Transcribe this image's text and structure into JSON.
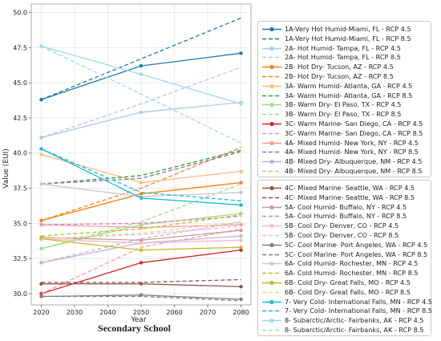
{
  "caption": "Secondary School",
  "chart_data": {
    "type": "line",
    "title": "",
    "xlabel": "Year",
    "ylabel": "Value (EUI)",
    "xlim": [
      2017,
      2083
    ],
    "ylim": [
      29.2,
      50.6
    ],
    "xticks": [
      2020,
      2030,
      2040,
      2050,
      2060,
      2070,
      2080
    ],
    "yticks": [
      30.0,
      32.5,
      35.0,
      37.5,
      40.0,
      42.5,
      45.0,
      47.5,
      50.0
    ],
    "ytick_labels": [
      "30.0",
      "32.5",
      "35.0",
      "37.5",
      "40.0",
      "42.5",
      "45.0",
      "47.5",
      "50.0"
    ],
    "grid": true,
    "legend_placement": "right, outside plot (two boxes)",
    "x": [
      2020,
      2050,
      2080
    ],
    "series": [
      {
        "name": "1A-Very Hot Humid-Miami, FL - RCP 4.5",
        "color": "#1f77b4",
        "dash": "solid",
        "values": [
          43.8,
          46.2,
          47.1
        ]
      },
      {
        "name": "1A-Very Hot Humid-Miami, FL - RCP 8.5",
        "color": "#1f77b4",
        "dash": "dashed",
        "values": [
          43.8,
          46.7,
          49.6
        ]
      },
      {
        "name": "2A- Hot Humid- Tampa, FL - RCP 4.5",
        "color": "#aec7e8",
        "dash": "solid",
        "values": [
          41.1,
          42.9,
          43.6
        ]
      },
      {
        "name": "2A- Hot Humid- Tampa, FL - RCP 8.5",
        "color": "#aec7e8",
        "dash": "dashed",
        "values": [
          41.1,
          43.5,
          46.1
        ]
      },
      {
        "name": "2B- Hot Dry- Tucson, AZ - RCP 4.5",
        "color": "#ff7f0e",
        "dash": "solid",
        "values": [
          35.2,
          37.1,
          37.9
        ]
      },
      {
        "name": "2B- Hot Dry- Tucson, AZ - RCP 8.5",
        "color": "#ff7f0e",
        "dash": "dashed",
        "values": [
          35.2,
          37.5,
          40.4
        ]
      },
      {
        "name": "3A- Warm Humid- Atlanta, GA - RCP 4.5",
        "color": "#ffbb78",
        "dash": "solid",
        "values": [
          39.9,
          37.9,
          38.7
        ]
      },
      {
        "name": "3A- Warm Humid- Atlanta, GA - RCP 8.5",
        "color": "#2ca02c",
        "dash": "dashed",
        "values": [
          37.8,
          38.4,
          40.2
        ]
      },
      {
        "name": "3B- Warm Dry- El Paso, TX - RCP 4.5",
        "color": "#98df8a",
        "dash": "solid",
        "values": [
          33.2,
          34.9,
          35.7
        ]
      },
      {
        "name": "3B- Warm Dry- El Paso, TX - RCP 8.5",
        "color": "#98df8a",
        "dash": "dashed",
        "values": [
          33.2,
          35.1,
          37.8
        ]
      },
      {
        "name": "3C- Warm Marine- San Diego, CA - RCP 4.5",
        "color": "#d62728",
        "dash": "solid",
        "values": [
          30.0,
          32.2,
          33.1
        ]
      },
      {
        "name": "3C- Warm Marine- San Diego, CA - RCP 8.5",
        "color": "#ff9896",
        "dash": "dashed",
        "values": [
          30.0,
          33.3,
          34.6
        ]
      },
      {
        "name": "4A- Mixed Humid- New York, NY - RCP 4.5",
        "color": "#ff9896",
        "dash": "solid",
        "values": [
          34.9,
          34.7,
          34.9
        ]
      },
      {
        "name": "4A- Mixed Humid- New York, NY - RCP 8.5",
        "color": "#9467bd",
        "dash": "dashed",
        "values": [
          37.8,
          38.2,
          40.1
        ]
      },
      {
        "name": "4B- Mixed Dry- Albuquerque, NM - RCP 4.5",
        "color": "#c5b0d5",
        "dash": "solid",
        "values": [
          32.2,
          33.6,
          34.1
        ]
      },
      {
        "name": "4B- Mixed Dry- Albuquerque, NM - RCP 8.5",
        "color": "#c5b0d5",
        "dash": "dashed",
        "values": [
          32.2,
          33.9,
          35.1
        ]
      },
      {
        "name": "4C- Mixed Marine- Seattle, WA - RCP 4.5",
        "color": "#8c564b",
        "dash": "solid",
        "values": [
          30.7,
          30.7,
          30.5
        ]
      },
      {
        "name": "4C- Mixed Marine- Seattle, WA - RCP 8.5",
        "color": "#8c564b",
        "dash": "dashed",
        "values": [
          30.8,
          30.8,
          31.0
        ]
      },
      {
        "name": "5A- Cool Humid- Buffalo, NY - RCP 4.5",
        "color": "#c49c94",
        "dash": "solid",
        "values": [
          34.0,
          33.8,
          34.5
        ]
      },
      {
        "name": "5A- Cool Humid- Buffalo, NY - RCP 8.5",
        "color": "#e377c2",
        "dash": "dashed",
        "values": [
          34.9,
          35.0,
          35.5
        ]
      },
      {
        "name": "5B- Cool Dry- Denver, CO - RCP 4.5",
        "color": "#f7b6d2",
        "dash": "solid",
        "values": [
          33.9,
          33.6,
          33.8
        ]
      },
      {
        "name": "5B- Cool Dry- Denver, CO - RCP 8.5",
        "color": "#f7b6d2",
        "dash": "dashed",
        "values": [
          33.9,
          34.2,
          34.8
        ]
      },
      {
        "name": "5C- Cool Marine- Port Angeles, WA - RCP 4.5",
        "color": "#7f7f7f",
        "dash": "solid",
        "values": [
          29.8,
          29.9,
          29.6
        ]
      },
      {
        "name": "5C- Cool Marine- Port Angeles, WA - RCP 8.5",
        "color": "#7f7f7f",
        "dash": "dashed",
        "values": [
          29.8,
          29.8,
          29.5
        ]
      },
      {
        "name": "6A- Cold Humid- Rochester, MN - RCP 4.5",
        "color": "#c7c7c7",
        "dash": "solid",
        "values": [
          37.8,
          36.9,
          37.2
        ]
      },
      {
        "name": "6A- Cold Humid- Rochester, MN - RCP 8.5",
        "color": "#bcbd22",
        "dash": "dashed",
        "values": [
          34.1,
          34.6,
          35.6
        ]
      },
      {
        "name": "6B- Cold Dry- Great Falls, MO - RCP 4.5",
        "color": "#bcbd22",
        "dash": "solid",
        "values": [
          33.9,
          33.1,
          33.3
        ]
      },
      {
        "name": "6B- Cold Dry- Great Falls, MO - RCP 8.5",
        "color": "#dbdb8d",
        "dash": "dashed",
        "values": [
          33.9,
          34.3,
          35.1
        ]
      },
      {
        "name": "7- Very Cold- International Falls, MN - RCP 4.5",
        "color": "#17becf",
        "dash": "solid",
        "values": [
          40.3,
          36.8,
          36.3
        ]
      },
      {
        "name": "7- Very Cold- International Falls, MN - RCP 8.5",
        "color": "#17becf",
        "dash": "dashed",
        "values": [
          40.3,
          37.2,
          36.6
        ]
      },
      {
        "name": "8- Subarctic/Arctic- Fairbanks, AK - RCP 4.5",
        "color": "#9edae5",
        "dash": "solid",
        "values": [
          47.6,
          45.6,
          43.5
        ]
      },
      {
        "name": "8- Subarctic/Arctic- Fairbanks, AK - RCP 8.5",
        "color": "#9edae5",
        "dash": "dashed",
        "values": [
          47.6,
          44.2,
          40.7
        ]
      }
    ]
  }
}
